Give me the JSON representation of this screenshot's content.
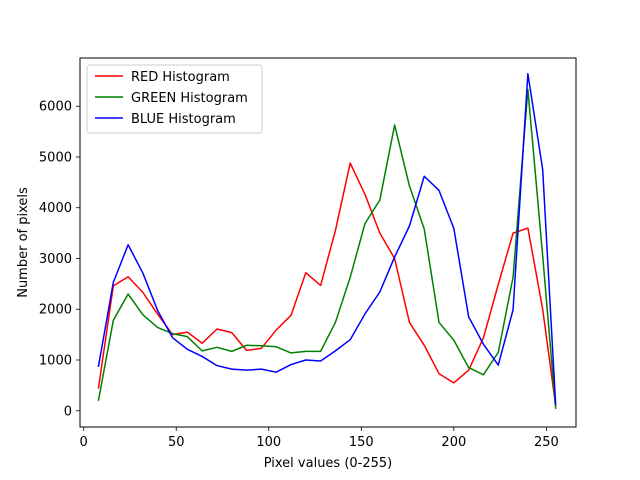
{
  "chart_data": {
    "type": "line",
    "title": "",
    "xlabel": "Pixel values (0-255)",
    "ylabel": "Number of pixels",
    "xlim": [
      -2,
      266
    ],
    "ylim": [
      -320,
      6950
    ],
    "xticks": [
      0,
      50,
      100,
      150,
      200,
      250
    ],
    "yticks": [
      0,
      1000,
      2000,
      3000,
      4000,
      5000,
      6000
    ],
    "xtick_labels": [
      "0",
      "50",
      "100",
      "150",
      "200",
      "250"
    ],
    "ytick_labels": [
      "0",
      "1000",
      "2000",
      "3000",
      "4000",
      "5000",
      "6000"
    ],
    "grid": false,
    "legend_position": "top-left",
    "x": [
      8,
      16,
      24,
      32,
      40,
      48,
      56,
      64,
      72,
      80,
      88,
      96,
      104,
      112,
      120,
      128,
      136,
      144,
      152,
      160,
      168,
      176,
      184,
      192,
      200,
      208,
      216,
      224,
      232,
      240,
      248,
      255
    ],
    "series": [
      {
        "name": "RED Histogram",
        "color": "#ff0000",
        "values": [
          450,
          2460,
          2640,
          2330,
          1900,
          1500,
          1550,
          1330,
          1610,
          1540,
          1190,
          1230,
          1590,
          1880,
          2720,
          2470,
          3550,
          4880,
          4260,
          3500,
          3000,
          1740,
          1290,
          730,
          550,
          800,
          1440,
          2490,
          3500,
          3600,
          2000,
          100
        ]
      },
      {
        "name": "GREEN Histogram",
        "color": "#008000",
        "values": [
          210,
          1780,
          2300,
          1890,
          1640,
          1520,
          1460,
          1180,
          1250,
          1170,
          1290,
          1280,
          1260,
          1140,
          1170,
          1170,
          1740,
          2630,
          3690,
          4150,
          5630,
          4430,
          3580,
          1740,
          1390,
          850,
          710,
          1150,
          2630,
          6330,
          3050,
          50
        ]
      },
      {
        "name": "BLUE Histogram",
        "color": "#0000ff",
        "values": [
          880,
          2530,
          3270,
          2710,
          1970,
          1440,
          1210,
          1070,
          890,
          820,
          800,
          820,
          760,
          910,
          1000,
          980,
          1180,
          1400,
          1910,
          2340,
          3030,
          3640,
          4620,
          4340,
          3590,
          1850,
          1310,
          900,
          1990,
          6640,
          4750,
          130
        ]
      }
    ]
  }
}
